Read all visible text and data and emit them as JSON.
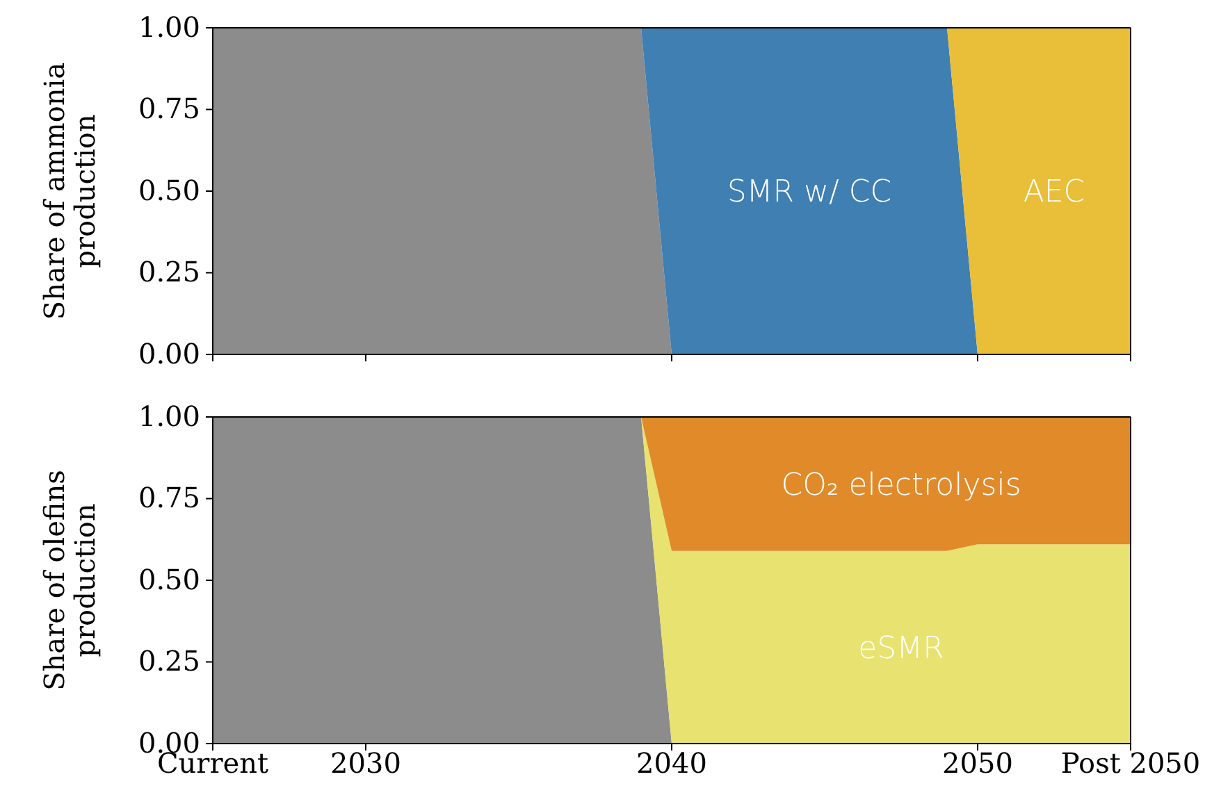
{
  "chart_data": [
    {
      "type": "area",
      "stacked": true,
      "ylabel": "Share of ammonia\nproduction",
      "x": [
        2025,
        2039,
        2040,
        2049,
        2050,
        2055
      ],
      "xlim": [
        2025,
        2055
      ],
      "xticks": [
        {
          "value": 2025,
          "label": null
        },
        {
          "value": 2030,
          "label": null
        },
        {
          "value": 2040,
          "label": null
        },
        {
          "value": 2050,
          "label": null
        },
        {
          "value": 2055,
          "label": null
        }
      ],
      "ylim": [
        0,
        1
      ],
      "yticks": [
        {
          "value": 0,
          "label": "0.00"
        },
        {
          "value": 0.25,
          "label": "0.25"
        },
        {
          "value": 0.5,
          "label": "0.50"
        },
        {
          "value": 0.75,
          "label": "0.75"
        },
        {
          "value": 1,
          "label": "1.00"
        }
      ],
      "tick_labels": "y",
      "grid": false,
      "legend": false,
      "series": [
        {
          "color": "#8c8c8c",
          "values": [
            1,
            1,
            0,
            null,
            null,
            null
          ]
        },
        {
          "name": "SMR w/ CC",
          "color": "#3f7fb2",
          "values": [
            null,
            0,
            1,
            1,
            0,
            null
          ]
        },
        {
          "name": "AEC",
          "color": "#e9be38",
          "values": [
            null,
            null,
            null,
            0,
            1,
            1
          ]
        }
      ]
    },
    {
      "type": "area",
      "stacked": true,
      "ylabel": "Share of olefins\nproduction",
      "x": [
        2025,
        2039,
        2040,
        2049,
        2050,
        2055
      ],
      "xlim": [
        2025,
        2055
      ],
      "xticks": [
        {
          "value": 2025,
          "label": "Current"
        },
        2030,
        2040,
        2050,
        {
          "value": 2055,
          "label": "Post 2050"
        }
      ],
      "ylim": [
        0,
        1
      ],
      "yticks": [
        {
          "value": 0,
          "label": "0.00"
        },
        {
          "value": 0.25,
          "label": "0.25"
        },
        {
          "value": 0.5,
          "label": "0.50"
        },
        {
          "value": 0.75,
          "label": "0.75"
        },
        {
          "value": 1,
          "label": "1.00"
        }
      ],
      "grid": false,
      "legend": false,
      "series": [
        {
          "color": "#8c8c8c",
          "values": [
            1,
            1,
            0,
            null,
            null,
            null
          ]
        },
        {
          "name": "eSMR",
          "color": "#e8e270",
          "values": [
            null,
            0,
            0.59,
            0.59,
            0.61,
            0.61
          ]
        },
        {
          "name": "CO₂ electrolysis",
          "color": "#e08a2a",
          "values": [
            null,
            0,
            0.41,
            0.41,
            0.39,
            0.39
          ]
        }
      ]
    }
  ]
}
